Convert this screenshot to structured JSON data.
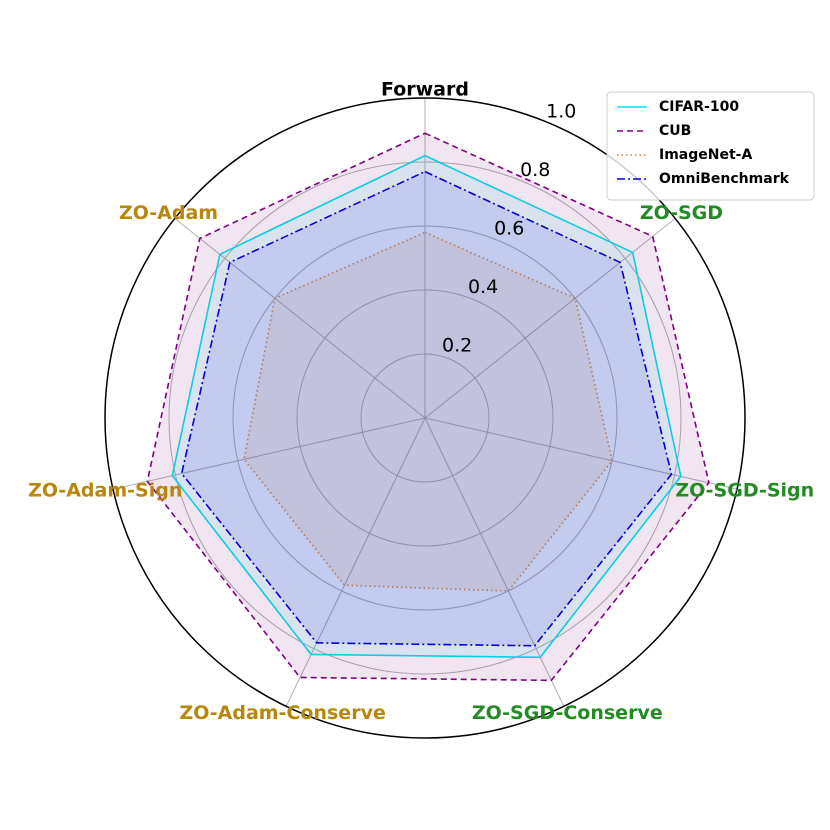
{
  "chart_data": {
    "type": "radar",
    "categories": [
      "Forward",
      "ZO-SGD",
      "ZO-SGD-Sign",
      "ZO-SGD-Conserve",
      "ZO-Adam-Conserve",
      "ZO-Adam-Sign",
      "ZO-Adam"
    ],
    "category_colors": [
      "#000000",
      "#228b22",
      "#228b22",
      "#228b22",
      "#b8860b",
      "#b8860b",
      "#b8860b"
    ],
    "ylim": [
      0,
      1
    ],
    "yticks": [
      0.2,
      0.4,
      0.6,
      0.8,
      {
        "value": 1,
        "label": "1.0"
      }
    ],
    "grid": true,
    "legend": "upper right",
    "series": [
      {
        "name": "CIFAR-100",
        "color": "#00e5ee",
        "linestyle": "solid",
        "values": [
          0.82,
          0.83,
          0.82,
          0.83,
          0.82,
          0.81,
          0.82
        ]
      },
      {
        "name": "CUB",
        "color": "#800080",
        "linestyle": "dashed",
        "values": [
          0.89,
          0.91,
          0.91,
          0.91,
          0.9,
          0.89,
          0.9
        ]
      },
      {
        "name": "ImageNet-A",
        "color": "#cd853f",
        "linestyle": "dotted",
        "values": [
          0.58,
          0.6,
          0.6,
          0.6,
          0.58,
          0.58,
          0.6
        ]
      },
      {
        "name": "OmniBenchmark",
        "color": "#0000dd",
        "linestyle": "dashdot",
        "values": [
          0.77,
          0.78,
          0.79,
          0.79,
          0.78,
          0.78,
          0.78
        ]
      }
    ]
  }
}
